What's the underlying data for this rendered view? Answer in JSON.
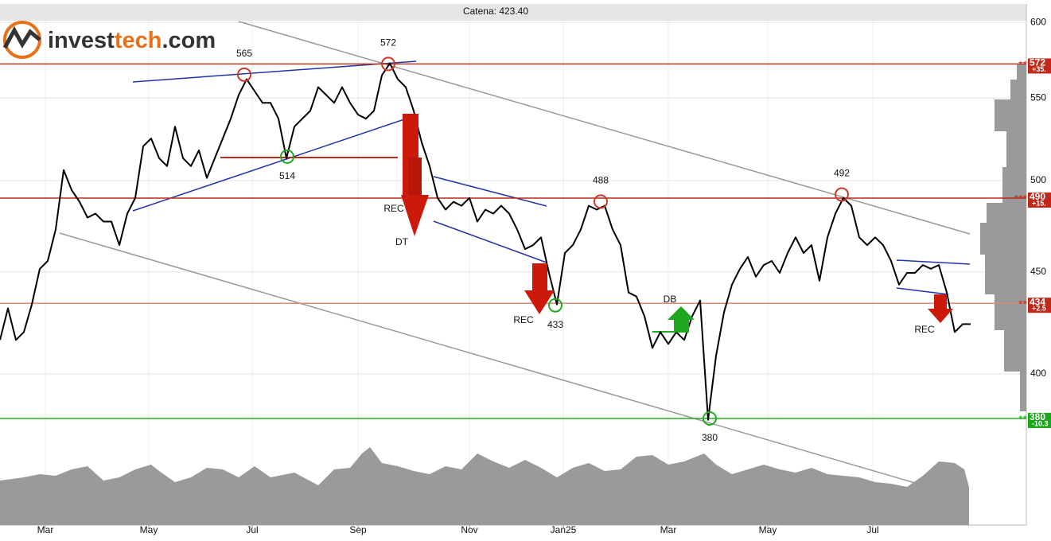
{
  "logo": [
    "invest",
    "tech",
    ".com"
  ],
  "chart_data": {
    "type": "line",
    "title": "Catena: 423.40",
    "log_scale": true,
    "grid": true,
    "xlim": [
      0,
      129
    ],
    "ylim": [
      336,
      613
    ],
    "yticks": [
      400,
      450,
      500,
      550,
      600
    ],
    "xticks": [
      {
        "value": 5.7,
        "label": "Mar"
      },
      {
        "value": 18.7,
        "label": "May"
      },
      {
        "value": 31.7,
        "label": "Jul"
      },
      {
        "value": 45,
        "label": "Sep"
      },
      {
        "value": 59,
        "label": "Nov"
      },
      {
        "value": 70.8,
        "label": "Jan25"
      },
      {
        "value": 84,
        "label": "Mar"
      },
      {
        "value": 96.5,
        "label": "May"
      },
      {
        "value": 109.7,
        "label": "Jul"
      }
    ],
    "series": [
      {
        "color": "#000000",
        "values": [
          416,
          431.5,
          416,
          419.8,
          433.4,
          451.6,
          455.7,
          472.6,
          506.1,
          494.6,
          487.9,
          479.1,
          481.3,
          476.9,
          476.9,
          464.1,
          481.3,
          490.1,
          520.2,
          524.9,
          513.1,
          508.4,
          532.1,
          513.1,
          508.4,
          517.8,
          501.5,
          513.1,
          524.9,
          537,
          551.9,
          562,
          554.4,
          546.9,
          546.9,
          537,
          513.1,
          532.1,
          537,
          541.9,
          556.9,
          551.9,
          546.9,
          556.9,
          546.9,
          539.5,
          537,
          541.9,
          564.6,
          572.4,
          562,
          556.9,
          541.9,
          522.5,
          508.4,
          490.1,
          483.5,
          487.9,
          485.7,
          490.1,
          476.9,
          483.5,
          481.3,
          485.7,
          481.3,
          472.6,
          462,
          464.1,
          468.3,
          449.5,
          433.4,
          459.9,
          464.1,
          472.6,
          485.7,
          483.5,
          485.7,
          472.6,
          464.1,
          439.4,
          437.4,
          427.6,
          412.2,
          419.8,
          414.1,
          419.8,
          416,
          427.6,
          435.4,
          379.4,
          408.5,
          429.5,
          443.4,
          451.6,
          457.8,
          447.5,
          453.6,
          455.7,
          449.5,
          459.9,
          468.3,
          459.9,
          464.1,
          445.4,
          468.3,
          481.3,
          490.1,
          485.7,
          468.3,
          464.1,
          468.3,
          464.1,
          455.7,
          443.4,
          449.5,
          449.5,
          453.6,
          451.6,
          453.6,
          439.4,
          419.8,
          423.7,
          423.7
        ]
      }
    ],
    "levels": [
      {
        "value": 572,
        "color": "#b83a24",
        "stars": "**",
        "change": "+35.",
        "box": "#c0281a"
      },
      {
        "value": 490,
        "color": "#c0281a",
        "stars": "***",
        "change": "+15.",
        "box": "#c0281a"
      },
      {
        "value": 434,
        "color": "#d88a7a",
        "stars": "**",
        "change": "+2.5",
        "box": "#c0281a"
      },
      {
        "value": 380,
        "color": "#22b022",
        "stars": "**",
        "change": "-10.3",
        "box": "#1aa81a"
      }
    ],
    "turning_points": [
      {
        "x": 30.7,
        "value": 565,
        "color": "#c83a2a",
        "kind": "top"
      },
      {
        "x": 36.1,
        "value": 514,
        "color": "#22aa22",
        "kind": "bottom"
      },
      {
        "x": 48.8,
        "value": 572,
        "color": "#c83a2a",
        "kind": "top"
      },
      {
        "x": 69.8,
        "value": 433,
        "color": "#22aa22",
        "kind": "bottom"
      },
      {
        "x": 75.5,
        "value": 488,
        "color": "#c83a2a",
        "kind": "top"
      },
      {
        "x": 89.2,
        "value": 380,
        "color": "#22aa22",
        "kind": "bottom"
      },
      {
        "x": 105.8,
        "value": 492,
        "color": "#c83a2a",
        "kind": "top"
      }
    ],
    "signals": [
      "REC",
      "DT",
      "REC",
      "REC",
      "DB"
    ]
  }
}
